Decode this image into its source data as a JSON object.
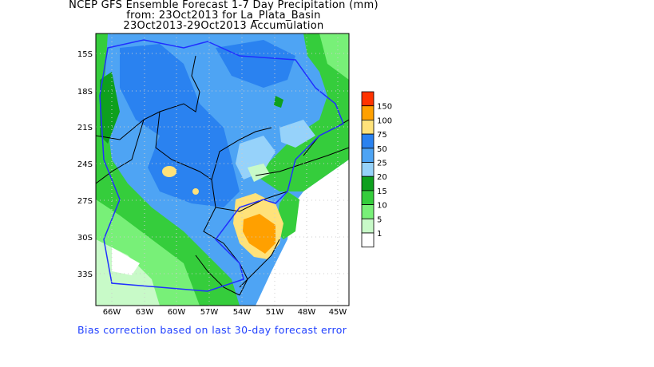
{
  "title": {
    "line1": "NCEP GFS Ensemble Forecast 1-7 Day Precipitation (mm)",
    "line2": "from: 23Oct2013   for La_Plata_Basin",
    "line3": "23Oct2013-29Oct2013 Accumulation"
  },
  "lat_labels": [
    "15S",
    "18S",
    "21S",
    "24S",
    "27S",
    "30S",
    "33S"
  ],
  "lon_labels": [
    "66W",
    "63W",
    "60W",
    "57W",
    "54W",
    "51W",
    "48W",
    "45W"
  ],
  "legend": {
    "labels": [
      "150",
      "100",
      "75",
      "50",
      "25",
      "20",
      "15",
      "10",
      "5",
      "1"
    ],
    "colors": [
      "#ff3300",
      "#ffa000",
      "#ffe27a",
      "#2a82f0",
      "#4ea4f4",
      "#96d2fa",
      "#0ea01e",
      "#35cd3c",
      "#78f078",
      "#c8fac8",
      "#ffffff"
    ]
  },
  "footer": "Bias correction based on last 30-day forecast error"
}
